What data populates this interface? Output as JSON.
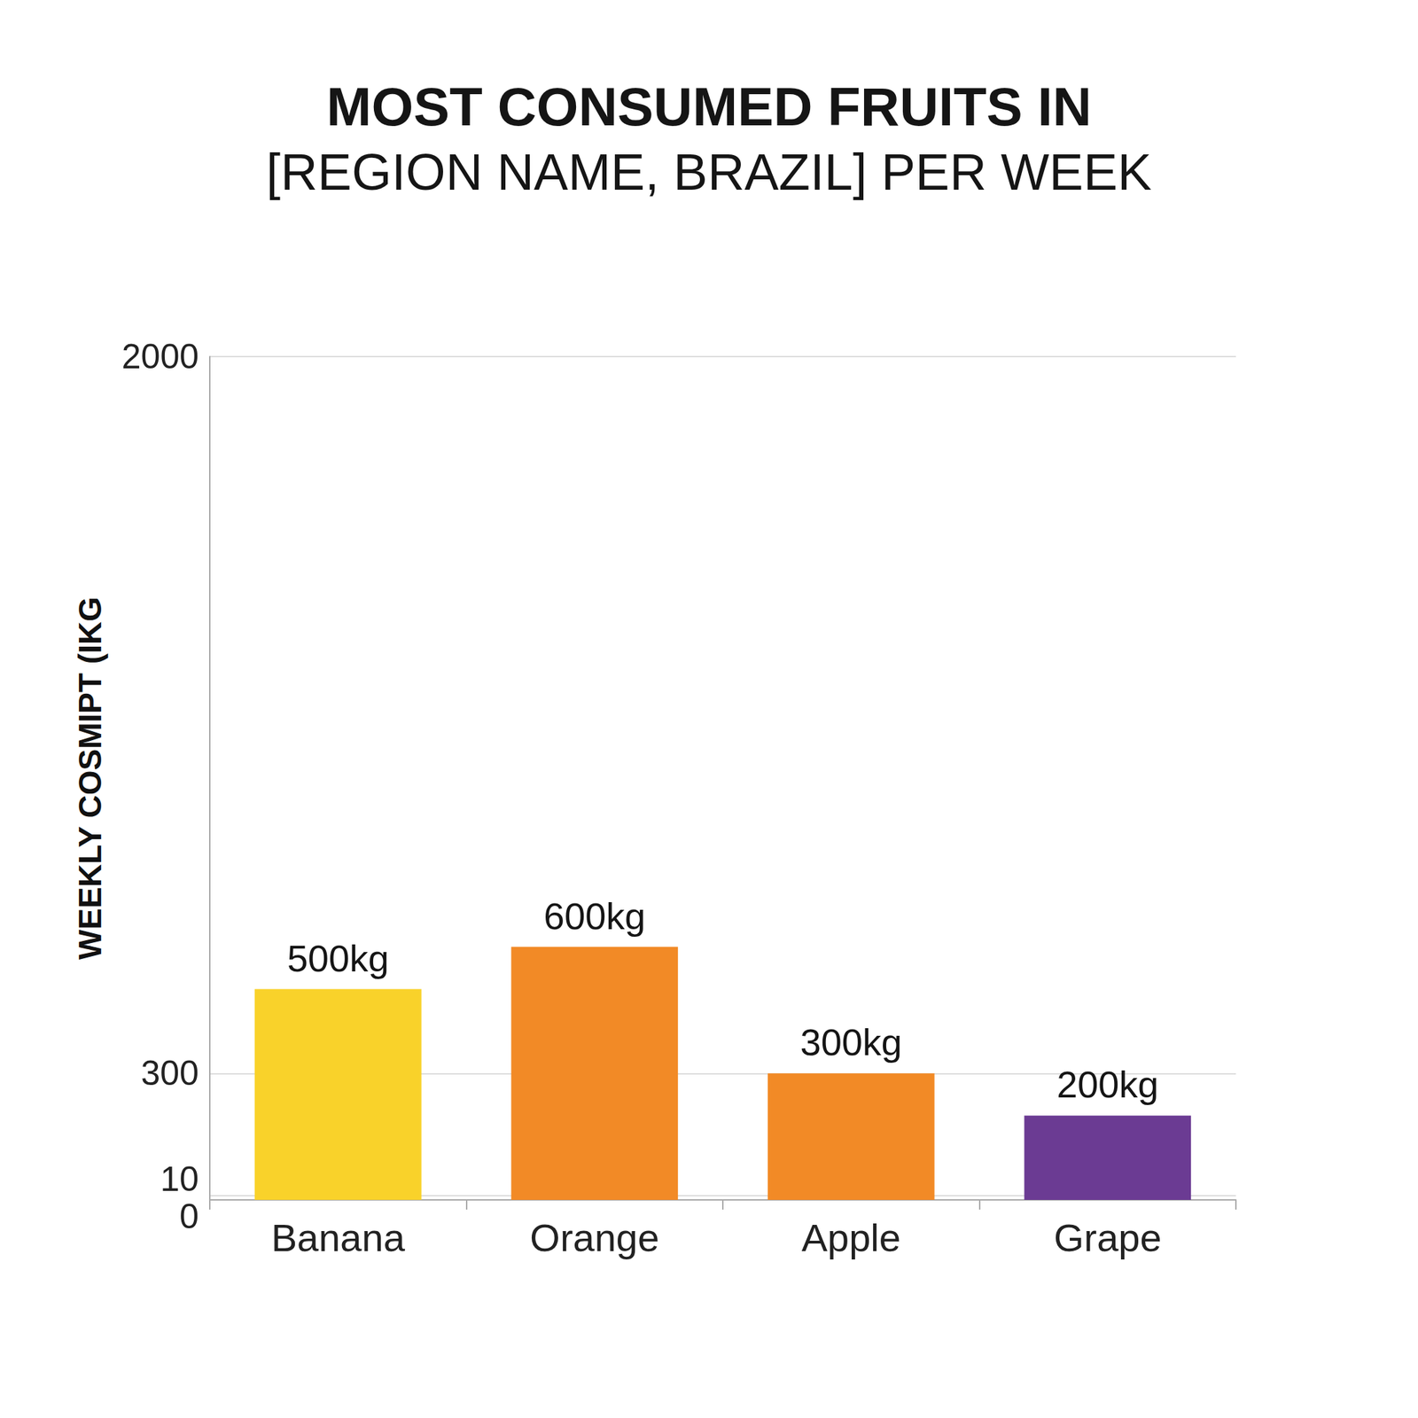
{
  "chart_data": {
    "type": "bar",
    "title": "MOST CONSUMED FRUITS IN",
    "subtitle": "[REGION NAME, BRAZIL] PER WEEK",
    "y_label": "WEEKLY COSMIPT (IKG",
    "categories": [
      "Banana",
      "Orange",
      "Apple",
      "Grape"
    ],
    "values": [
      500,
      600,
      300,
      200
    ],
    "value_labels": [
      "500kg",
      "600kg",
      "300kg",
      "200kg"
    ],
    "colors": [
      "#f9d22a",
      "#f28a26",
      "#f28a26",
      "#6b3b93"
    ],
    "ylim": [
      0,
      2000
    ],
    "yticks": [
      0,
      10,
      300,
      2000
    ],
    "grid": true,
    "data_labels": true
  }
}
